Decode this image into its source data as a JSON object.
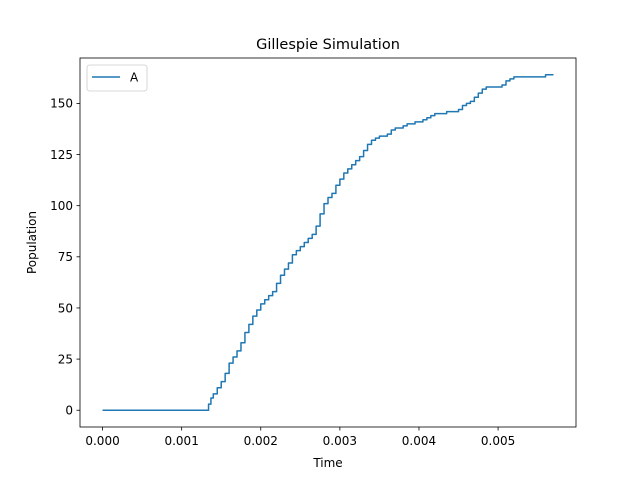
{
  "chart_data": {
    "type": "line",
    "title": "Gillespie Simulation",
    "xlabel": "Time",
    "ylabel": "Population",
    "xlim": [
      -0.000285,
      0.005985
    ],
    "ylim": [
      -8.2,
      172.2
    ],
    "xticks": [
      0.0,
      0.001,
      0.002,
      0.003,
      0.004,
      0.005
    ],
    "xtick_labels": [
      "0.000",
      "0.001",
      "0.002",
      "0.003",
      "0.004",
      "0.005"
    ],
    "yticks": [
      0,
      25,
      50,
      75,
      100,
      125,
      150
    ],
    "ytick_labels": [
      "0",
      "25",
      "50",
      "75",
      "100",
      "125",
      "150"
    ],
    "grid": false,
    "legend_position": "upper-left",
    "colors": {
      "series": "#1f77b4"
    },
    "series": [
      {
        "name": "A",
        "step": true,
        "x": [
          0.0,
          0.00132,
          0.00134,
          0.00137,
          0.0014,
          0.00145,
          0.0015,
          0.00155,
          0.0016,
          0.00165,
          0.0017,
          0.00175,
          0.0018,
          0.00185,
          0.0019,
          0.00195,
          0.002,
          0.00205,
          0.0021,
          0.00215,
          0.0022,
          0.00225,
          0.0023,
          0.00235,
          0.0024,
          0.00245,
          0.0025,
          0.00255,
          0.0026,
          0.00265,
          0.0027,
          0.00275,
          0.0028,
          0.00285,
          0.0029,
          0.00295,
          0.003,
          0.00305,
          0.0031,
          0.00315,
          0.0032,
          0.00325,
          0.0033,
          0.00335,
          0.0034,
          0.00345,
          0.0035,
          0.00355,
          0.0036,
          0.00365,
          0.0037,
          0.00375,
          0.0038,
          0.00385,
          0.0039,
          0.00395,
          0.004,
          0.00405,
          0.0041,
          0.00415,
          0.0042,
          0.00425,
          0.0043,
          0.00435,
          0.0044,
          0.00445,
          0.0045,
          0.00455,
          0.0046,
          0.00465,
          0.0047,
          0.00475,
          0.0048,
          0.00485,
          0.0049,
          0.00495,
          0.005,
          0.00505,
          0.0051,
          0.00515,
          0.0052,
          0.00525,
          0.0053,
          0.00535,
          0.0054,
          0.00545,
          0.0055,
          0.00555,
          0.0056,
          0.00565,
          0.0057
        ],
        "y": [
          0,
          0,
          3,
          6,
          8,
          11,
          14,
          18,
          23,
          26,
          29,
          33,
          38,
          42,
          46,
          49,
          52,
          54,
          56,
          58,
          62,
          66,
          69,
          72,
          76,
          78,
          80,
          82,
          84,
          86,
          90,
          96,
          101,
          104,
          106,
          110,
          113,
          116,
          118,
          120,
          122,
          124,
          127,
          130,
          132,
          133,
          134,
          134,
          135,
          137,
          138,
          138,
          139,
          140,
          140,
          141,
          141,
          142,
          143,
          144,
          145,
          145,
          145,
          146,
          146,
          146,
          147,
          149,
          150,
          151,
          153,
          155,
          157,
          158,
          158,
          158,
          158,
          159,
          161,
          162,
          163,
          163,
          163,
          163,
          163,
          163,
          163,
          163,
          164,
          164,
          164
        ]
      }
    ]
  }
}
